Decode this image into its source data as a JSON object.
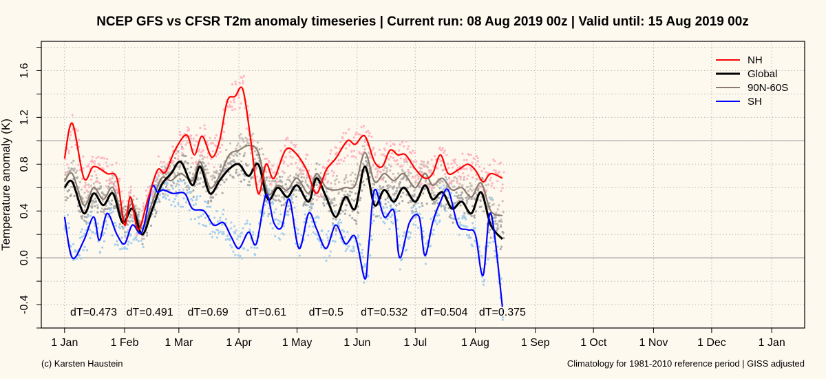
{
  "title": "NCEP GFS vs CFSR T2m anomaly timeseries | Current run: 08 Aug 2019 00z | Valid until: 15 Aug 2019 00z",
  "footer_left": "(c) Karsten Haustein",
  "footer_right": "Climatology for 1981-2010 reference period | GISS adjusted",
  "chart_data": {
    "type": "line",
    "title": "NCEP GFS vs CFSR T2m anomaly timeseries | Current run: 08 Aug 2019 00z | Valid until: 15 Aug 2019 00z",
    "ylabel": "Temperature anomaly (K)",
    "xlabel": "",
    "x_unit": "day of year 2019",
    "xlim": [
      -12,
      382
    ],
    "ylim": [
      -0.6,
      1.85
    ],
    "y_ticks": [
      -0.4,
      0.0,
      0.4,
      0.8,
      1.2,
      1.6
    ],
    "y_tick_labels": [
      "-0.4",
      "0.0",
      "0.4",
      "0.8",
      "1.2",
      "1.6"
    ],
    "x_ticks": [
      0,
      31,
      59,
      90,
      120,
      151,
      181,
      212,
      243,
      273,
      304,
      334,
      365
    ],
    "x_tick_labels": [
      "1 Jan",
      "1 Feb",
      "1 Mar",
      "1 Apr",
      "1 May",
      "1 Jun",
      "1 Jul",
      "1 Aug",
      "1 Sep",
      "1 Oct",
      "1 Nov",
      "1 Dec",
      "1 Jan"
    ],
    "grid": true,
    "reference_lines": [
      0.0,
      1.0
    ],
    "legend_position": "top-right",
    "series": [
      {
        "name": "NH",
        "color": "#ff0000",
        "dot_color": "#ffb6c1",
        "x": [
          0,
          4,
          10,
          15,
          22,
          27,
          31,
          34,
          38,
          43,
          48,
          52,
          57,
          63,
          67,
          71,
          76,
          80,
          84,
          88,
          92,
          96,
          100,
          104,
          108,
          114,
          119,
          125,
          130,
          135,
          140,
          146,
          150,
          155,
          160,
          164,
          168,
          172,
          176,
          181,
          186,
          190,
          194,
          198,
          203,
          208,
          212,
          216,
          220,
          226
        ],
        "values": [
          0.85,
          1.15,
          0.68,
          0.78,
          0.72,
          0.68,
          0.28,
          0.52,
          0.24,
          0.5,
          0.75,
          0.73,
          0.92,
          1.05,
          0.88,
          1.04,
          0.86,
          1.0,
          1.34,
          1.38,
          1.44,
          1.02,
          0.55,
          0.8,
          0.68,
          0.92,
          0.9,
          0.75,
          0.55,
          0.75,
          0.85,
          1.0,
          0.97,
          1.04,
          0.82,
          0.78,
          0.92,
          0.88,
          0.88,
          0.76,
          0.68,
          0.72,
          0.88,
          0.72,
          0.75,
          0.8,
          0.75,
          0.65,
          0.72,
          0.68
        ]
      },
      {
        "name": "Global",
        "color": "#000000",
        "dot_color": "#aaaaaa",
        "x": [
          0,
          4,
          10,
          15,
          20,
          25,
          30,
          35,
          40,
          45,
          50,
          55,
          60,
          66,
          70,
          75,
          80,
          85,
          90,
          95,
          100,
          105,
          110,
          115,
          120,
          126,
          130,
          135,
          140,
          145,
          150,
          155,
          160,
          165,
          170,
          175,
          181,
          186,
          190,
          195,
          200,
          205,
          210,
          215,
          220,
          226
        ],
        "values": [
          0.6,
          0.65,
          0.38,
          0.55,
          0.45,
          0.55,
          0.3,
          0.42,
          0.2,
          0.4,
          0.62,
          0.72,
          0.82,
          0.62,
          0.78,
          0.55,
          0.66,
          0.76,
          0.8,
          0.7,
          0.8,
          0.5,
          0.6,
          0.52,
          0.62,
          0.48,
          0.68,
          0.52,
          0.35,
          0.52,
          0.42,
          0.78,
          0.45,
          0.58,
          0.48,
          0.6,
          0.48,
          0.62,
          0.5,
          0.56,
          0.42,
          0.48,
          0.38,
          0.56,
          0.28,
          0.16
        ]
      },
      {
        "name": "90N-60S",
        "color": "#8b7b70",
        "dot_color": "#c9bfb7",
        "x": [
          0,
          4,
          10,
          15,
          20,
          25,
          30,
          35,
          40,
          45,
          50,
          55,
          60,
          66,
          70,
          75,
          80,
          85,
          90,
          95,
          100,
          105,
          110,
          115,
          120,
          126,
          130,
          135,
          140,
          145,
          150,
          155,
          160,
          165,
          170,
          175,
          181,
          186,
          190,
          195,
          200,
          205,
          210,
          215,
          220,
          226
        ],
        "values": [
          0.65,
          0.72,
          0.45,
          0.6,
          0.5,
          0.6,
          0.35,
          0.46,
          0.25,
          0.46,
          0.68,
          0.66,
          0.72,
          0.66,
          0.82,
          0.6,
          0.7,
          0.88,
          0.92,
          0.96,
          0.9,
          0.55,
          0.62,
          0.58,
          0.68,
          0.55,
          0.72,
          0.6,
          0.58,
          0.6,
          0.62,
          0.9,
          0.65,
          0.72,
          0.66,
          0.72,
          0.6,
          0.72,
          0.62,
          0.68,
          0.58,
          0.6,
          0.52,
          0.64,
          0.4,
          0.36
        ]
      },
      {
        "name": "SH",
        "color": "#0000ff",
        "dot_color": "#a6cfee",
        "x": [
          0,
          4,
          10,
          15,
          18,
          22,
          27,
          31,
          35,
          40,
          45,
          48,
          51,
          56,
          62,
          66,
          72,
          77,
          82,
          86,
          90,
          95,
          99,
          104,
          108,
          112,
          116,
          121,
          126,
          130,
          135,
          140,
          145,
          150,
          155,
          157,
          160,
          165,
          170,
          173,
          178,
          183,
          186,
          190,
          194,
          198,
          203,
          208,
          212,
          216,
          220,
          226
        ],
        "values": [
          0.35,
          0.0,
          0.15,
          0.35,
          0.15,
          0.38,
          0.2,
          0.12,
          0.28,
          0.22,
          0.6,
          0.56,
          0.58,
          0.55,
          0.55,
          0.42,
          0.4,
          0.28,
          0.3,
          0.18,
          0.08,
          0.22,
          0.12,
          0.54,
          0.3,
          0.26,
          0.5,
          0.08,
          0.38,
          0.25,
          0.08,
          0.28,
          0.12,
          0.18,
          -0.18,
          0.1,
          0.58,
          0.35,
          0.4,
          0.0,
          0.3,
          0.35,
          0.02,
          0.3,
          0.48,
          0.58,
          0.28,
          0.24,
          0.2,
          -0.15,
          0.38,
          -0.42
        ]
      }
    ],
    "annotations": [
      {
        "x": 15,
        "text": "dT=0.473"
      },
      {
        "x": 44,
        "text": "dT=0.491"
      },
      {
        "x": 74,
        "text": "dT=0.69"
      },
      {
        "x": 104,
        "text": "dT=0.61"
      },
      {
        "x": 135,
        "text": "dT=0.5"
      },
      {
        "x": 165,
        "text": "dT=0.532"
      },
      {
        "x": 196,
        "text": "dT=0.504"
      },
      {
        "x": 226,
        "text": "dT=0.375"
      }
    ]
  }
}
